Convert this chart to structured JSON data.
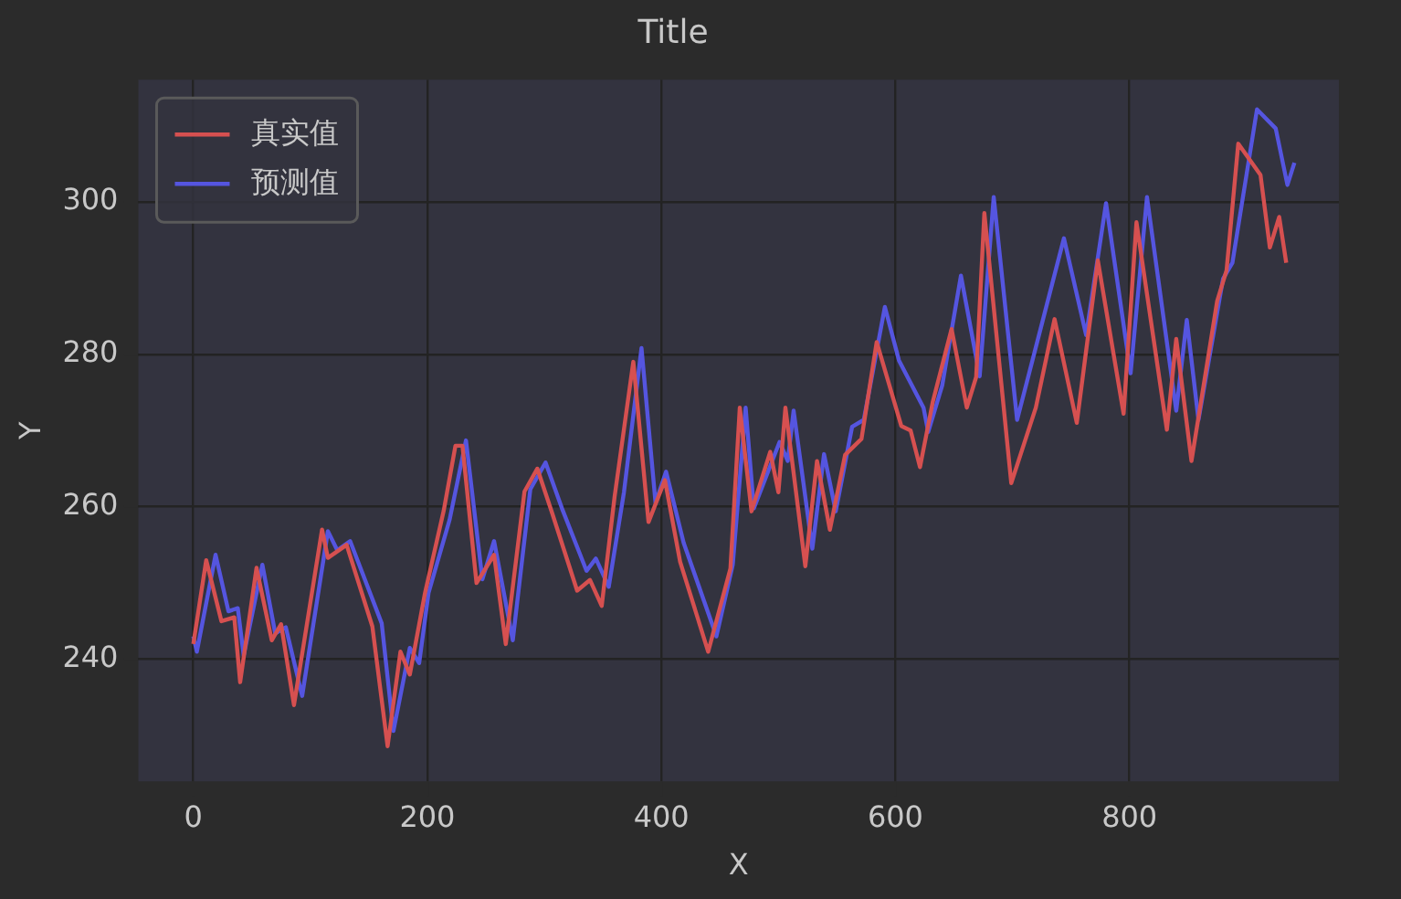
{
  "chart_data": {
    "type": "line",
    "title": "Title",
    "xlabel": "X",
    "ylabel": "Y",
    "xlim": [
      -47,
      979
    ],
    "ylim": [
      224,
      316
    ],
    "xticks": [
      0,
      200,
      400,
      600,
      800
    ],
    "yticks": [
      240,
      260,
      280,
      300
    ],
    "grid": true,
    "legend": "top left",
    "marker": "none",
    "line_style": "solid",
    "series": [
      {
        "name": "真实值",
        "color": "#d65050",
        "x": [
          0,
          11,
          24,
          35,
          40,
          54,
          67,
          75,
          86,
          110,
          115,
          131,
          153,
          166,
          177,
          185,
          198,
          214,
          224,
          230,
          242,
          257,
          267,
          283,
          294,
          307,
          328,
          339,
          349,
          360,
          376,
          389,
          403,
          416,
          440,
          459,
          467,
          477,
          493,
          500,
          506,
          523,
          533,
          544,
          557,
          571,
          584,
          605,
          613,
          621,
          632,
          648,
          661,
          669,
          676,
          699,
          720,
          736,
          755,
          773,
          795,
          806,
          832,
          840,
          853,
          875,
          883,
          893,
          912,
          920,
          928,
          934
        ],
        "values": [
          242,
          253,
          245,
          245.5,
          237,
          252,
          242.5,
          244.6,
          234,
          257,
          253.3,
          255,
          244.3,
          228.6,
          241,
          238,
          248.7,
          259.5,
          268,
          268,
          250,
          253.7,
          242,
          262,
          265,
          259,
          249,
          250.4,
          247,
          261.3,
          279,
          258,
          263.5,
          252.8,
          241,
          251.9,
          273,
          259.4,
          267.2,
          261.9,
          273,
          252.2,
          266,
          257,
          266.8,
          268.9,
          281.6,
          270.6,
          270,
          265.2,
          273.8,
          283.3,
          273,
          277,
          298.5,
          263.1,
          273,
          284.6,
          271,
          292.3,
          272.2,
          297.3,
          270.1,
          282,
          266,
          287,
          291,
          307.6,
          303.5,
          294,
          298,
          292
        ]
      },
      {
        "name": "预测值",
        "color": "#5555e0",
        "x": [
          0,
          3,
          19,
          30,
          38,
          43,
          59,
          70,
          79,
          93,
          115,
          123,
          134,
          161,
          171,
          185,
          193,
          201,
          219,
          233,
          247,
          257,
          273,
          288,
          301,
          315,
          336,
          344,
          355,
          368,
          383,
          395,
          404,
          419,
          447,
          461,
          472,
          479,
          501,
          508,
          513,
          529,
          539,
          549,
          563,
          573,
          591,
          603,
          624,
          628,
          640,
          656,
          672,
          684,
          704,
          744,
          763,
          780,
          801,
          815,
          840,
          849,
          859,
          880,
          888,
          909,
          925,
          935,
          941
        ],
        "values": [
          243,
          241,
          253.7,
          246.3,
          246.7,
          240.5,
          252.4,
          243.4,
          244.2,
          235.2,
          256.8,
          254.3,
          255.5,
          244.7,
          230.6,
          241.5,
          239.5,
          248.7,
          258.3,
          268.7,
          250.5,
          255.5,
          242.5,
          262.3,
          265.8,
          259.8,
          251.6,
          253.2,
          249.5,
          261.9,
          280.8,
          260.5,
          264.6,
          255.3,
          243,
          252.4,
          273,
          259.8,
          268.5,
          266,
          272.6,
          254.5,
          266.9,
          259.4,
          270.5,
          271.4,
          286.2,
          279.2,
          273,
          269.8,
          275.9,
          290.3,
          277.1,
          300.6,
          271.4,
          295.2,
          282.5,
          299.8,
          277.5,
          300.6,
          272.6,
          284.5,
          271.4,
          289.9,
          292,
          312.1,
          309.6,
          302.2,
          305.1
        ]
      }
    ]
  }
}
